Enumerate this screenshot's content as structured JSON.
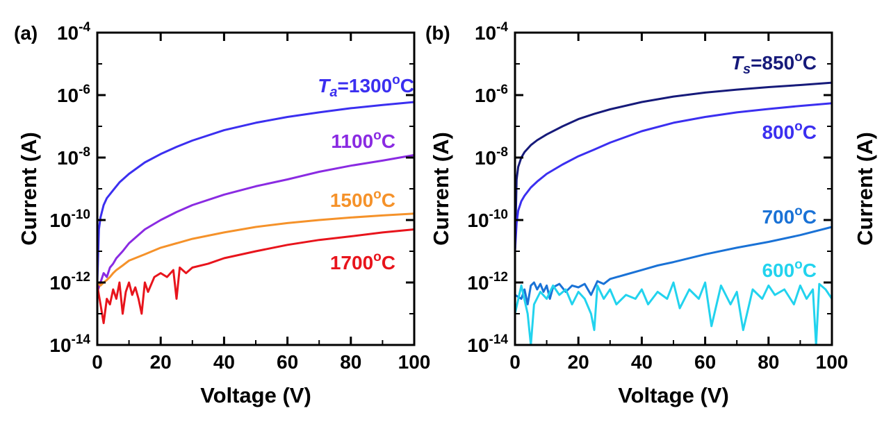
{
  "chart_data": [
    {
      "type": "line",
      "panel_label": "(a)",
      "xlabel": "Voltage (V)",
      "ylabel": "Current (A)",
      "xlim": [
        0,
        100
      ],
      "ylim": [
        1e-14,
        0.0001
      ],
      "yscale": "log",
      "xticks": [
        "0",
        "20",
        "40",
        "60",
        "80",
        "100"
      ],
      "yticks": [
        {
          "base": "10",
          "exp": "-4"
        },
        {
          "base": "10",
          "exp": "-6"
        },
        {
          "base": "10",
          "exp": "-8"
        },
        {
          "base": "10",
          "exp": "-10"
        },
        {
          "base": "10",
          "exp": "-12"
        },
        {
          "base": "10",
          "exp": "-14"
        }
      ],
      "series": [
        {
          "name": "1300",
          "prefix": "T",
          "sub": "a",
          "equals": "=",
          "unit_sup": "o",
          "unit": "C",
          "color": "#3b2ff0",
          "x": [
            0,
            0.5,
            1,
            2,
            3,
            5,
            7,
            10,
            15,
            20,
            25,
            30,
            40,
            50,
            60,
            70,
            80,
            90,
            100
          ],
          "y": [
            1e-12,
            5e-11,
            1.2e-10,
            3e-10,
            5e-10,
            9e-10,
            1.6e-09,
            3e-09,
            7e-09,
            1.3e-08,
            2.2e-08,
            3.5e-08,
            7.5e-08,
            1.3e-07,
            2e-07,
            2.8e-07,
            3.8e-07,
            4.8e-07,
            6e-07
          ]
        },
        {
          "name": "1100",
          "prefix": "",
          "sub": "",
          "equals": "",
          "unit_sup": "o",
          "unit": "C",
          "color": "#8a2be2",
          "x": [
            0,
            1,
            2,
            3,
            4,
            5,
            6,
            8,
            10,
            15,
            20,
            25,
            30,
            40,
            50,
            60,
            70,
            80,
            90,
            100
          ],
          "y": [
            5e-13,
            1e-12,
            2e-12,
            1.5e-12,
            3e-12,
            4e-12,
            6e-12,
            1e-11,
            1.8e-11,
            5e-11,
            1e-10,
            1.8e-10,
            3e-10,
            6.5e-10,
            1.2e-09,
            2e-09,
            3.5e-09,
            5.5e-09,
            8e-09,
            1.2e-08
          ]
        },
        {
          "name": "1500",
          "prefix": "",
          "sub": "",
          "equals": "",
          "unit_sup": "o",
          "unit": "C",
          "color": "#f5922a",
          "x": [
            0,
            1,
            2,
            3,
            4,
            5,
            6,
            8,
            10,
            15,
            20,
            25,
            30,
            40,
            50,
            60,
            70,
            80,
            90,
            100
          ],
          "y": [
            1e-12,
            8e-13,
            1e-12,
            1.2e-12,
            1.5e-12,
            2e-12,
            2.5e-12,
            3.5e-12,
            5e-12,
            8e-12,
            1.3e-11,
            1.8e-11,
            2.5e-11,
            4e-11,
            6e-11,
            8e-11,
            1e-10,
            1.2e-10,
            1.4e-10,
            1.6e-10
          ]
        },
        {
          "name": "1700",
          "prefix": "",
          "sub": "",
          "equals": "",
          "unit_sup": "o",
          "unit": "C",
          "color": "#e8141c",
          "x": [
            0,
            1,
            2,
            3,
            4,
            5,
            6,
            7,
            8,
            9,
            10,
            11,
            12,
            13,
            14,
            15,
            16,
            18,
            20,
            22,
            24,
            25,
            26,
            28,
            30,
            35,
            40,
            50,
            60,
            70,
            80,
            90,
            100
          ],
          "y": [
            8e-13,
            2e-13,
            5e-14,
            3e-13,
            2e-13,
            6e-13,
            3e-13,
            1e-12,
            1e-13,
            5e-13,
            1e-12,
            4e-13,
            7e-13,
            3e-13,
            1e-13,
            1e-12,
            5e-13,
            1.5e-12,
            2e-12,
            1.5e-12,
            2.5e-12,
            3e-13,
            3e-12,
            2e-12,
            3e-12,
            4e-12,
            6e-12,
            1e-11,
            1.6e-11,
            2.3e-11,
            3e-11,
            4e-11,
            5e-11
          ]
        }
      ]
    },
    {
      "type": "line",
      "panel_label": "(b)",
      "xlabel": "Voltage (V)",
      "ylabel": "Current (A)",
      "ylabel_right": "Current (A)",
      "xlim": [
        0,
        100
      ],
      "ylim": [
        1e-14,
        0.0001
      ],
      "yscale": "log",
      "xticks": [
        "0",
        "20",
        "40",
        "60",
        "80",
        "100"
      ],
      "yticks": [
        {
          "base": "10",
          "exp": "-4"
        },
        {
          "base": "10",
          "exp": "-6"
        },
        {
          "base": "10",
          "exp": "-8"
        },
        {
          "base": "10",
          "exp": "-10"
        },
        {
          "base": "10",
          "exp": "-12"
        },
        {
          "base": "10",
          "exp": "-14"
        }
      ],
      "series": [
        {
          "name": "850",
          "prefix": "T",
          "sub": "s",
          "equals": "=",
          "unit_sup": "o",
          "unit": "C",
          "color": "#161a7a",
          "x": [
            0,
            0.5,
            1,
            2,
            3,
            5,
            7,
            10,
            15,
            20,
            25,
            30,
            40,
            50,
            60,
            70,
            80,
            90,
            100
          ],
          "y": [
            1e-11,
            2e-09,
            5e-09,
            1e-08,
            1.5e-08,
            2.5e-08,
            3.6e-08,
            5.5e-08,
            1e-07,
            1.7e-07,
            2.5e-07,
            3.5e-07,
            6e-07,
            9e-07,
            1.2e-06,
            1.5e-06,
            1.8e-06,
            2.1e-06,
            2.5e-06
          ]
        },
        {
          "name": "800",
          "prefix": "",
          "sub": "",
          "equals": "",
          "unit_sup": "o",
          "unit": "C",
          "color": "#3b2ff0",
          "x": [
            0,
            0.5,
            1,
            2,
            3,
            5,
            7,
            10,
            15,
            20,
            25,
            30,
            40,
            50,
            60,
            70,
            80,
            90,
            100
          ],
          "y": [
            1e-11,
            8e-11,
            2e-10,
            4e-10,
            6e-10,
            1.1e-09,
            1.7e-09,
            3e-09,
            6e-09,
            1.1e-08,
            1.8e-08,
            3e-08,
            7e-08,
            1.3e-07,
            2e-07,
            2.8e-07,
            3.6e-07,
            4.5e-07,
            5.5e-07
          ]
        },
        {
          "name": "700",
          "prefix": "",
          "sub": "",
          "equals": "",
          "unit_sup": "o",
          "unit": "C",
          "color": "#1a72d6",
          "x": [
            0,
            2,
            3,
            4,
            5,
            6,
            7,
            8,
            9,
            10,
            11,
            12,
            14,
            16,
            18,
            20,
            22,
            24,
            26,
            28,
            30,
            35,
            40,
            45,
            50,
            60,
            70,
            80,
            90,
            100
          ],
          "y": [
            4e-13,
            3e-13,
            6e-13,
            2e-13,
            8e-13,
            1e-12,
            6e-13,
            9e-13,
            5e-13,
            8e-13,
            3e-13,
            7e-13,
            9e-13,
            5e-13,
            8e-13,
            7e-13,
            9e-13,
            4e-13,
            1.1e-12,
            9e-13,
            1.3e-12,
            1.8e-12,
            2.5e-12,
            3.5e-12,
            4.5e-12,
            8e-12,
            1.3e-11,
            2e-11,
            3.3e-11,
            6e-11
          ]
        },
        {
          "name": "600",
          "prefix": "",
          "sub": "",
          "equals": "",
          "unit_sup": "o",
          "unit": "C",
          "color": "#22d3ee",
          "x": [
            0,
            2,
            4,
            5,
            6,
            8,
            10,
            12,
            14,
            16,
            18,
            20,
            22,
            24,
            25,
            26,
            28,
            30,
            32,
            35,
            38,
            40,
            42,
            45,
            48,
            50,
            52,
            55,
            58,
            60,
            62,
            65,
            68,
            70,
            72,
            75,
            78,
            80,
            82,
            85,
            88,
            90,
            92,
            94,
            95,
            96,
            98,
            100
          ],
          "y": [
            1e-13,
            8e-13,
            1e-13,
            1e-14,
            2e-13,
            5e-13,
            3e-13,
            8e-13,
            4e-13,
            6e-13,
            2e-13,
            5e-13,
            3e-13,
            1e-13,
            3e-14,
            8e-13,
            3e-13,
            6e-13,
            2e-13,
            4e-13,
            3e-13,
            6e-13,
            2e-13,
            5e-13,
            3e-13,
            1e-12,
            1.5e-13,
            6e-13,
            3e-13,
            1e-12,
            4e-14,
            8e-13,
            2e-13,
            5e-13,
            3e-14,
            6e-13,
            3e-13,
            8e-13,
            4e-13,
            6e-13,
            2e-13,
            8e-13,
            3e-13,
            6e-13,
            1e-14,
            9e-13,
            6e-13,
            3e-13
          ]
        }
      ]
    }
  ]
}
